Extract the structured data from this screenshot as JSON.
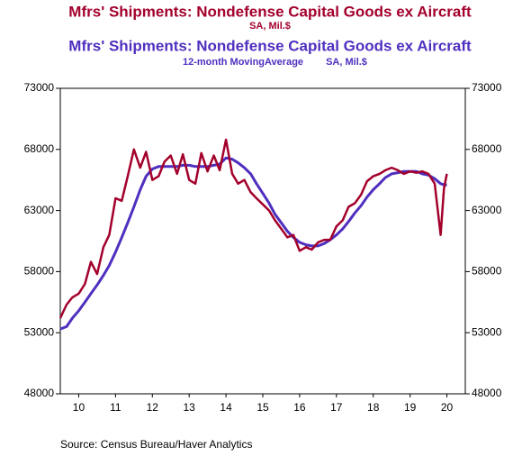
{
  "chart_data": {
    "type": "line",
    "source": "Source:  Census Bureau/Haver Analytics",
    "x": [
      2010.0,
      2010.17,
      2010.33,
      2010.5,
      2010.67,
      2010.83,
      2011.0,
      2011.17,
      2011.33,
      2011.5,
      2011.67,
      2011.83,
      2012.0,
      2012.17,
      2012.33,
      2012.5,
      2012.67,
      2012.83,
      2013.0,
      2013.17,
      2013.33,
      2013.5,
      2013.67,
      2013.83,
      2014.0,
      2014.17,
      2014.33,
      2014.5,
      2014.67,
      2014.83,
      2015.0,
      2015.17,
      2015.33,
      2015.5,
      2015.67,
      2015.83,
      2016.0,
      2016.17,
      2016.33,
      2016.5,
      2016.67,
      2016.83,
      2017.0,
      2017.17,
      2017.33,
      2017.5,
      2017.67,
      2017.83,
      2018.0,
      2018.17,
      2018.33,
      2018.5,
      2018.67,
      2018.83,
      2019.0,
      2019.17,
      2019.33,
      2019.5,
      2019.67,
      2019.83,
      2020.0,
      2020.17,
      2020.33,
      2020.42,
      2020.5
    ],
    "series": [
      {
        "name": "Mfrs' Shipments: Nondefense Capital Goods ex Aircraft",
        "units": "SA, Mil.$",
        "color": "#a3002b",
        "values": [
          54200,
          55300,
          55900,
          56200,
          57000,
          58800,
          57800,
          60000,
          61000,
          64000,
          63800,
          65800,
          68000,
          66500,
          67800,
          65500,
          65800,
          67000,
          67500,
          66000,
          67600,
          65500,
          65200,
          67700,
          66200,
          67500,
          66300,
          68800,
          66000,
          65200,
          65500,
          64500,
          64000,
          63500,
          63000,
          62200,
          61500,
          60800,
          61000,
          59700,
          60000,
          59800,
          60400,
          60600,
          60600,
          61700,
          62200,
          63300,
          63600,
          64300,
          65400,
          65800,
          66000,
          66300,
          66500,
          66300,
          66000,
          66200,
          66100,
          66200,
          66000,
          65200,
          61000,
          64800,
          66000
        ]
      },
      {
        "name": "Mfrs' Shipments: Nondefense Capital Goods ex Aircraft",
        "note": "12-month MovingAverage",
        "units": "SA, Mil.$",
        "color": "#4f2fbf",
        "values": [
          53300,
          53500,
          54200,
          54800,
          55500,
          56200,
          56900,
          57700,
          58500,
          59600,
          60800,
          62000,
          63300,
          64700,
          65800,
          66400,
          66600,
          66600,
          66600,
          66600,
          66700,
          66700,
          66600,
          66600,
          66600,
          66700,
          66800,
          67300,
          67200,
          66900,
          66500,
          66000,
          65200,
          64400,
          63600,
          62700,
          62000,
          61300,
          60800,
          60400,
          60200,
          60100,
          60100,
          60300,
          60600,
          61000,
          61500,
          62100,
          62800,
          63400,
          64100,
          64700,
          65200,
          65700,
          66000,
          66100,
          66200,
          66200,
          66200,
          66000,
          65900,
          65600,
          65200,
          65100,
          65100
        ]
      }
    ],
    "xlim": [
      2010,
      2021
    ],
    "xticks": [
      {
        "value": 2010.5,
        "label": "10"
      },
      {
        "value": 2011.5,
        "label": "11"
      },
      {
        "value": 2012.5,
        "label": "12"
      },
      {
        "value": 2013.5,
        "label": "13"
      },
      {
        "value": 2014.5,
        "label": "14"
      },
      {
        "value": 2015.5,
        "label": "15"
      },
      {
        "value": 2016.5,
        "label": "16"
      },
      {
        "value": 2017.5,
        "label": "17"
      },
      {
        "value": 2018.5,
        "label": "18"
      },
      {
        "value": 2019.5,
        "label": "19"
      },
      {
        "value": 2020.5,
        "label": "20"
      }
    ],
    "ylim": [
      48000,
      73000
    ],
    "yticks": [
      48000,
      53000,
      58000,
      63000,
      68000,
      73000
    ]
  }
}
